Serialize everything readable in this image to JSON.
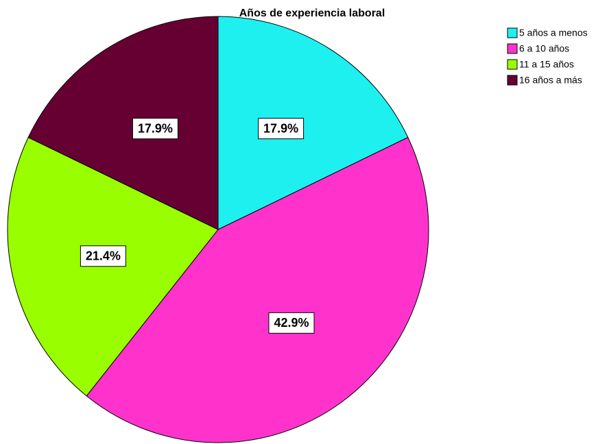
{
  "chart_data": {
    "type": "pie",
    "title": "Años de experiencia laboral",
    "categories": [
      "5 años a menos",
      "6 a 10 años",
      "11 a 15 años",
      "16 años a más"
    ],
    "values": [
      17.9,
      42.9,
      21.4,
      17.9
    ],
    "value_labels": [
      "17.9%",
      "42.9%",
      "21.4%",
      "17.9%"
    ],
    "colors": [
      "#1ef0f0",
      "#ff33cc",
      "#99ff00",
      "#660033"
    ],
    "legend": "right"
  }
}
